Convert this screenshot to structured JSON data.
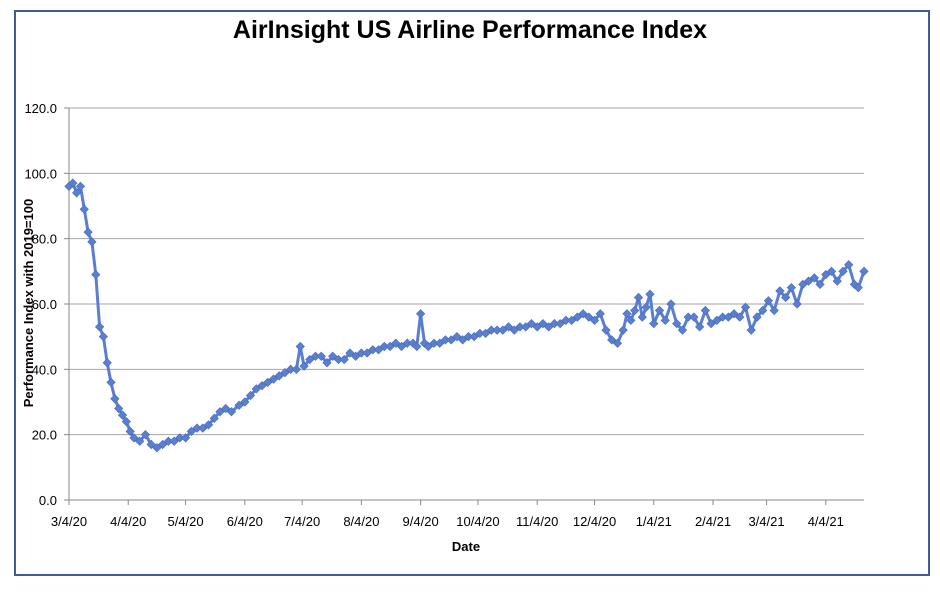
{
  "chart_data": {
    "type": "line",
    "title": "AirInsight US Airline Performance Index",
    "xlabel": "Date",
    "ylabel": "Performance Index with 2019=100",
    "ylim": [
      0,
      120
    ],
    "yticks": [
      "0.0",
      "20.0",
      "40.0",
      "60.0",
      "80.0",
      "100.0",
      "120.0"
    ],
    "xticks": [
      "3/4/20",
      "4/4/20",
      "5/4/20",
      "6/4/20",
      "7/4/20",
      "8/4/20",
      "9/4/20",
      "10/4/20",
      "11/4/20",
      "12/4/20",
      "1/4/21",
      "2/4/21",
      "3/4/21",
      "4/4/21"
    ],
    "xlim": [
      "2020-03-04",
      "2021-04-24"
    ],
    "grid": "horizontal",
    "marker": "diamond",
    "series_color": "#5b7fd0",
    "series": [
      {
        "x": [
          "2020-03-04",
          "2020-03-06",
          "2020-03-08",
          "2020-03-10",
          "2020-03-12",
          "2020-03-14",
          "2020-03-16",
          "2020-03-18",
          "2020-03-20",
          "2020-03-22",
          "2020-03-24",
          "2020-03-26",
          "2020-03-28",
          "2020-03-30",
          "2020-04-01",
          "2020-04-03",
          "2020-04-05",
          "2020-04-07",
          "2020-04-10",
          "2020-04-13",
          "2020-04-16",
          "2020-04-19",
          "2020-04-22",
          "2020-04-25",
          "2020-04-28",
          "2020-05-01",
          "2020-05-04",
          "2020-05-07",
          "2020-05-10",
          "2020-05-13",
          "2020-05-16",
          "2020-05-19",
          "2020-05-22",
          "2020-05-25",
          "2020-05-28",
          "2020-06-01",
          "2020-06-04",
          "2020-06-07",
          "2020-06-10",
          "2020-06-13",
          "2020-06-16",
          "2020-06-19",
          "2020-06-22",
          "2020-06-25",
          "2020-06-28",
          "2020-07-01",
          "2020-07-03",
          "2020-07-05",
          "2020-07-08",
          "2020-07-11",
          "2020-07-14",
          "2020-07-17",
          "2020-07-20",
          "2020-07-23",
          "2020-07-26",
          "2020-07-29",
          "2020-08-01",
          "2020-08-04",
          "2020-08-07",
          "2020-08-10",
          "2020-08-13",
          "2020-08-16",
          "2020-08-19",
          "2020-08-22",
          "2020-08-25",
          "2020-08-28",
          "2020-08-31",
          "2020-09-02",
          "2020-09-04",
          "2020-09-06",
          "2020-09-08",
          "2020-09-11",
          "2020-09-14",
          "2020-09-17",
          "2020-09-20",
          "2020-09-23",
          "2020-09-26",
          "2020-09-29",
          "2020-10-02",
          "2020-10-05",
          "2020-10-08",
          "2020-10-11",
          "2020-10-14",
          "2020-10-17",
          "2020-10-20",
          "2020-10-23",
          "2020-10-26",
          "2020-10-29",
          "2020-11-01",
          "2020-11-04",
          "2020-11-07",
          "2020-11-10",
          "2020-11-13",
          "2020-11-16",
          "2020-11-19",
          "2020-11-22",
          "2020-11-25",
          "2020-11-28",
          "2020-12-01",
          "2020-12-04",
          "2020-12-07",
          "2020-12-10",
          "2020-12-13",
          "2020-12-16",
          "2020-12-19",
          "2020-12-21",
          "2020-12-23",
          "2020-12-25",
          "2020-12-27",
          "2020-12-29",
          "2020-12-31",
          "2021-01-02",
          "2021-01-04",
          "2021-01-07",
          "2021-01-10",
          "2021-01-13",
          "2021-01-16",
          "2021-01-19",
          "2021-01-22",
          "2021-01-25",
          "2021-01-28",
          "2021-01-31",
          "2021-02-03",
          "2021-02-06",
          "2021-02-09",
          "2021-02-12",
          "2021-02-15",
          "2021-02-18",
          "2021-02-21",
          "2021-02-24",
          "2021-02-27",
          "2021-03-02",
          "2021-03-05",
          "2021-03-08",
          "2021-03-11",
          "2021-03-14",
          "2021-03-17",
          "2021-03-20",
          "2021-03-23",
          "2021-03-26",
          "2021-03-29",
          "2021-04-01",
          "2021-04-04",
          "2021-04-07",
          "2021-04-10",
          "2021-04-13",
          "2021-04-16",
          "2021-04-19",
          "2021-04-21",
          "2021-04-24"
        ],
        "values": [
          96,
          97,
          94,
          96,
          89,
          82,
          79,
          69,
          53,
          50,
          42,
          36,
          31,
          28,
          26,
          24,
          21,
          19,
          18,
          20,
          17,
          16,
          17,
          18,
          18,
          19,
          19,
          21,
          22,
          22,
          23,
          25,
          27,
          28,
          27,
          29,
          30,
          32,
          34,
          35,
          36,
          37,
          38,
          39,
          40,
          40,
          47,
          41,
          43,
          44,
          44,
          42,
          44,
          43,
          43,
          45,
          44,
          45,
          45,
          46,
          46,
          47,
          47,
          48,
          47,
          48,
          48,
          47,
          57,
          48,
          47,
          48,
          48,
          49,
          49,
          50,
          49,
          50,
          50,
          51,
          51,
          52,
          52,
          52,
          53,
          52,
          53,
          53,
          54,
          53,
          54,
          53,
          54,
          54,
          55,
          55,
          56,
          57,
          56,
          55,
          57,
          52,
          49,
          48,
          52,
          57,
          55,
          58,
          62,
          56,
          59,
          63,
          54,
          58,
          55,
          60,
          54,
          52,
          56,
          56,
          53,
          58,
          54,
          55,
          56,
          56,
          57,
          56,
          59,
          52,
          56,
          58,
          61,
          58,
          64,
          62,
          65,
          60,
          66,
          67,
          68,
          66,
          69,
          70,
          67,
          70,
          72,
          66,
          65,
          70
        ]
      }
    ]
  }
}
